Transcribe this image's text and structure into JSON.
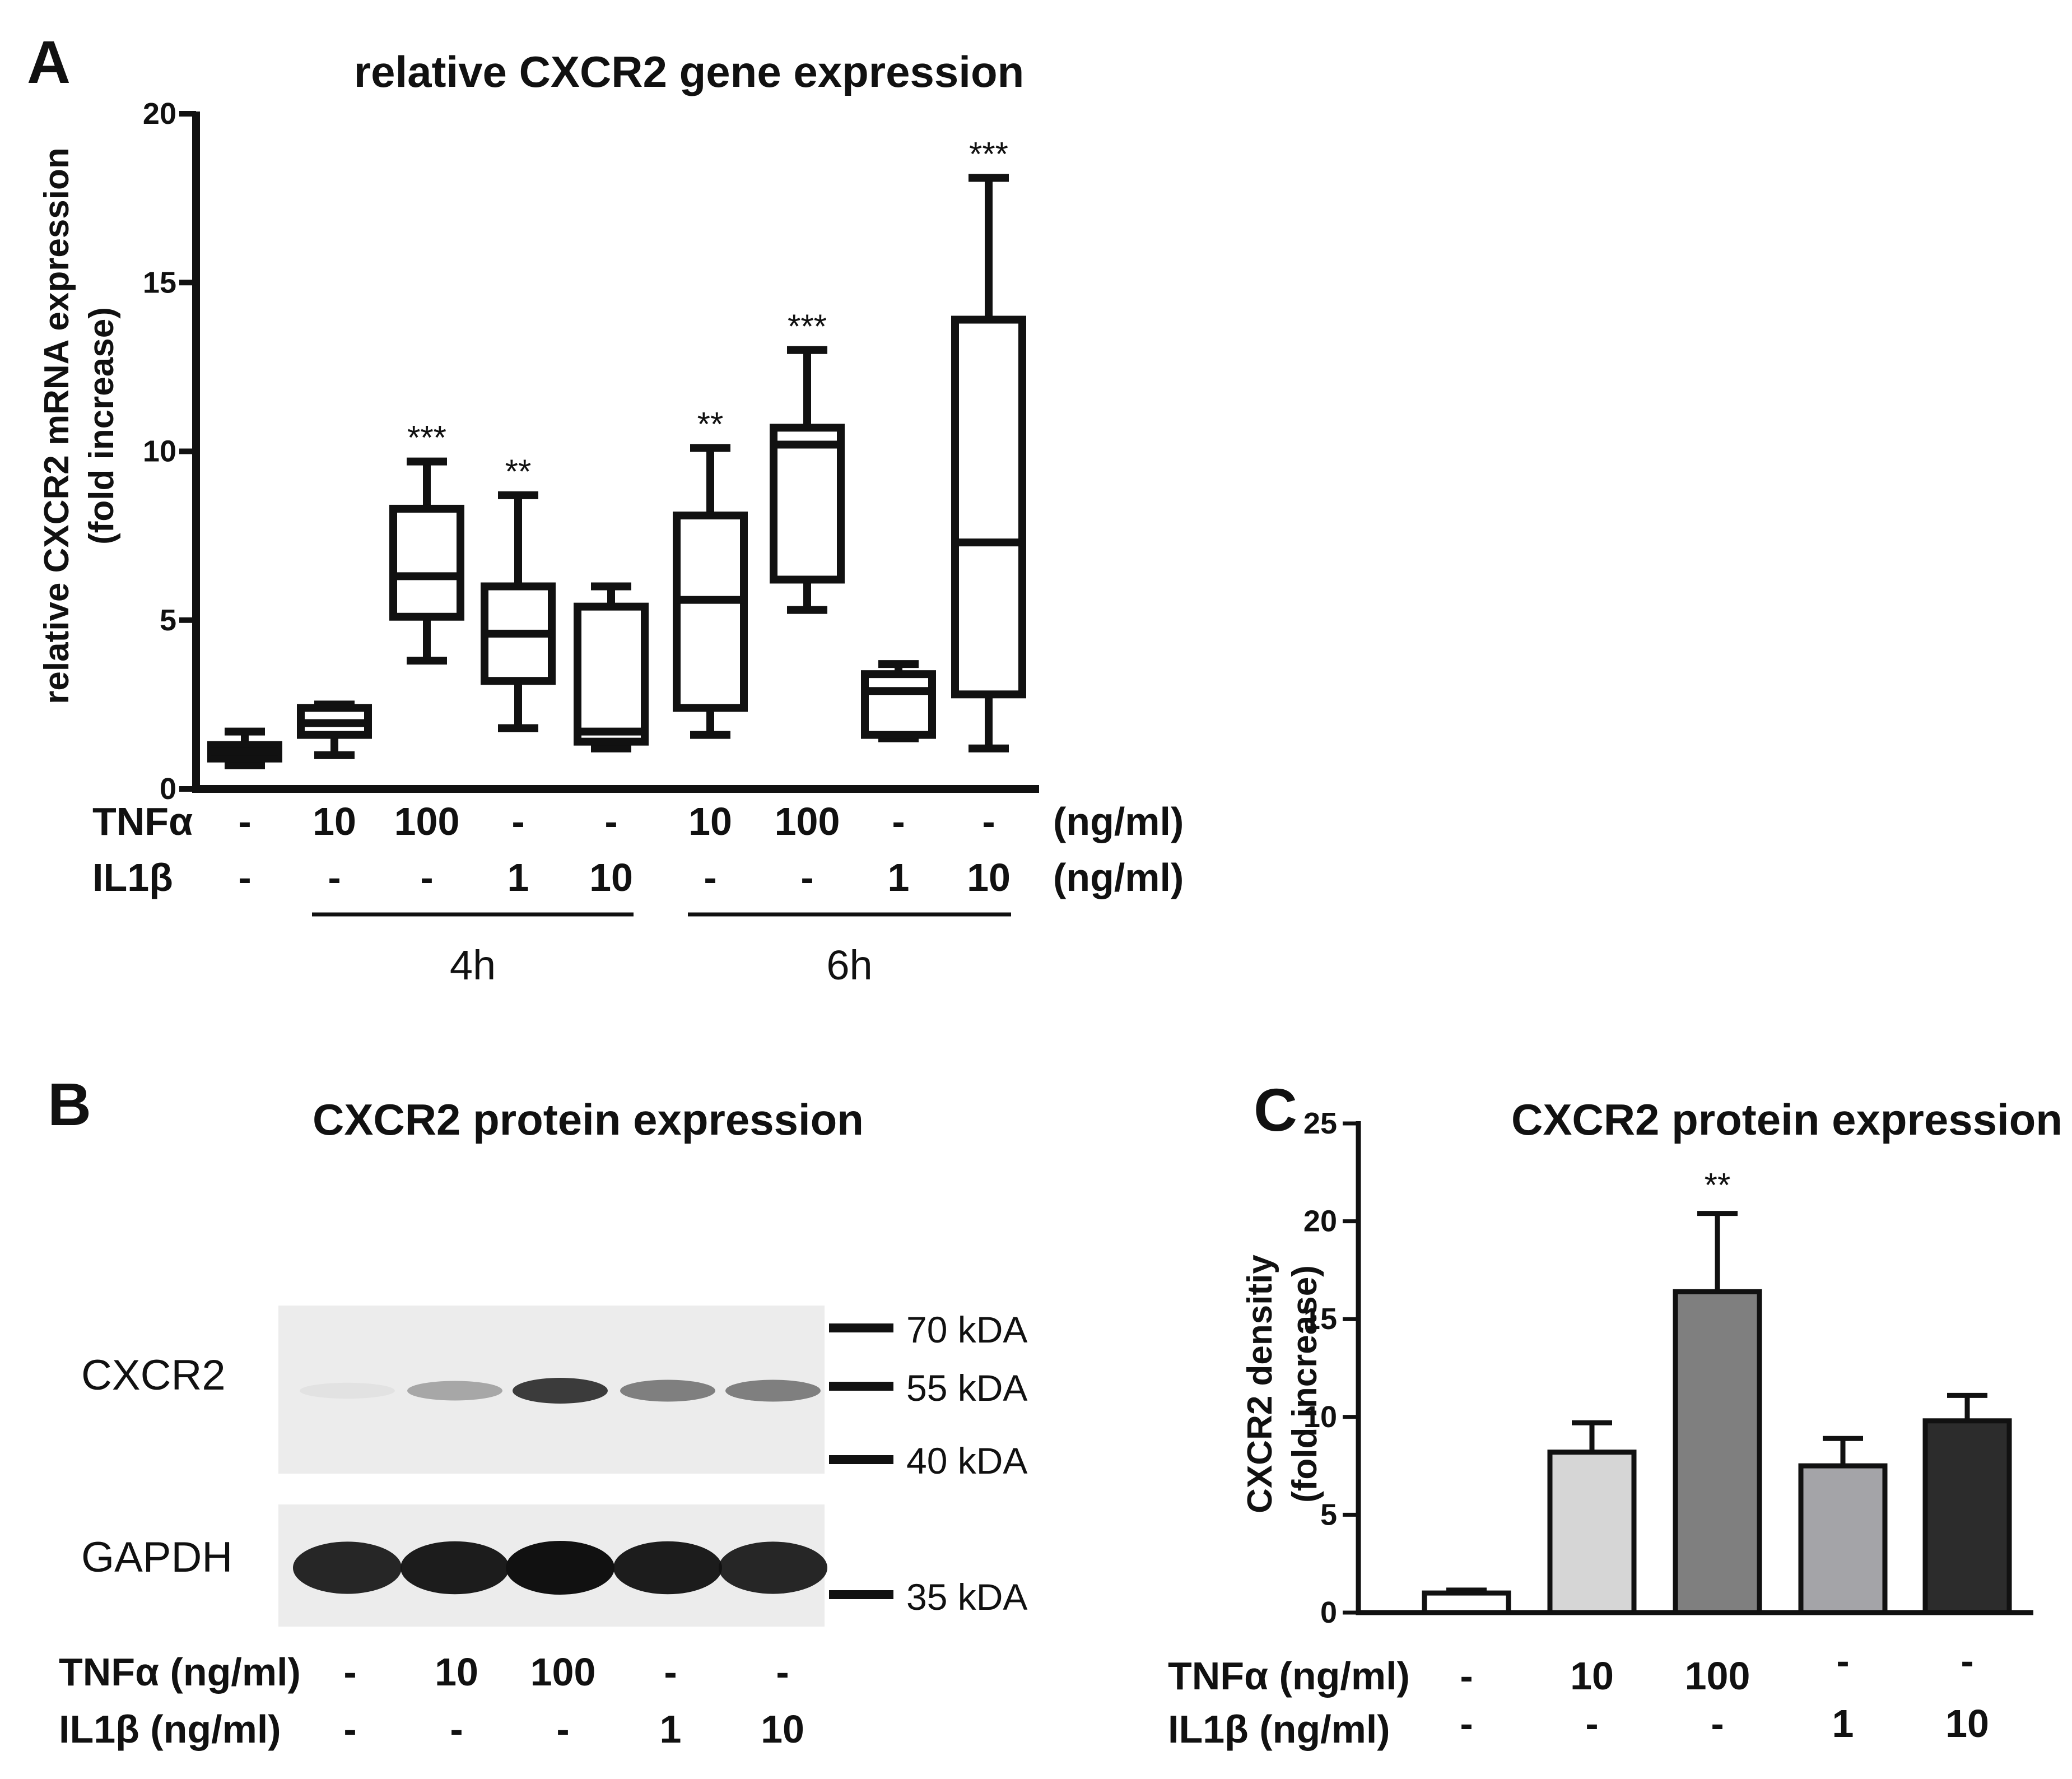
{
  "chart_data": [
    {
      "panel": "A",
      "type": "box",
      "title": "relative CXCR2 gene expression",
      "ylabel": "relative CXCR2 mRNA expression",
      "ylabel2": "(fold increase)",
      "ylim": [
        0,
        20
      ],
      "yticks": [
        "0",
        "5",
        "10",
        "15",
        "20"
      ],
      "row_labels": {
        "tnf": "TNFα",
        "il": "IL1β"
      },
      "unit_tnf": "(ng/ml)",
      "unit_il": "(ng/ml)",
      "groups": [
        {
          "tnf": "-",
          "il": "-",
          "min": 0.7,
          "q1": 0.9,
          "median": 1.1,
          "q3": 1.3,
          "max": 1.7,
          "sig": ""
        },
        {
          "tnf": "10",
          "il": "-",
          "min": 1.0,
          "q1": 1.6,
          "median": 1.95,
          "q3": 2.4,
          "max": 2.5,
          "sig": ""
        },
        {
          "tnf": "100",
          "il": "-",
          "min": 3.8,
          "q1": 5.1,
          "median": 6.3,
          "q3": 8.3,
          "max": 9.7,
          "sig": "***"
        },
        {
          "tnf": "-",
          "il": "1",
          "min": 1.8,
          "q1": 3.2,
          "median": 4.6,
          "q3": 6.0,
          "max": 8.7,
          "sig": "**"
        },
        {
          "tnf": "-",
          "il": "10",
          "min": 1.2,
          "q1": 1.4,
          "median": 1.7,
          "q3": 5.4,
          "max": 6.0,
          "sig": ""
        },
        {
          "tnf": "10",
          "il": "-",
          "min": 1.6,
          "q1": 2.4,
          "median": 5.6,
          "q3": 8.1,
          "max": 10.1,
          "sig": "**"
        },
        {
          "tnf": "100",
          "il": "-",
          "min": 5.3,
          "q1": 6.2,
          "median": 10.2,
          "q3": 10.7,
          "max": 13.0,
          "sig": "***"
        },
        {
          "tnf": "-",
          "il": "1",
          "min": 1.5,
          "q1": 1.6,
          "median": 2.9,
          "q3": 3.4,
          "max": 3.7,
          "sig": ""
        },
        {
          "tnf": "-",
          "il": "10",
          "min": 1.2,
          "q1": 2.8,
          "median": 7.3,
          "q3": 13.9,
          "max": 18.1,
          "sig": "***"
        }
      ],
      "time_groups": [
        {
          "label": "4h",
          "from": 1,
          "to": 4
        },
        {
          "label": "6h",
          "from": 5,
          "to": 8
        }
      ]
    },
    {
      "panel": "B",
      "type": "western_blot",
      "title": "CXCR2 protein expression",
      "bands": [
        {
          "label": "CXCR2",
          "intensities": [
            0.02,
            0.35,
            0.9,
            0.55,
            0.55
          ]
        },
        {
          "label": "GAPDH",
          "intensities": [
            0.9,
            0.95,
            1.0,
            0.95,
            0.9
          ]
        }
      ],
      "markers": [
        "70 kDA",
        "55 kDA",
        "40 kDA",
        "35 kDA"
      ],
      "row_labels": {
        "tnf": "TNFα (ng/ml)",
        "il": "IL1β (ng/ml)"
      },
      "tnf": [
        "-",
        "10",
        "100",
        "-",
        "-"
      ],
      "il": [
        "-",
        "-",
        "-",
        "1",
        "10"
      ]
    },
    {
      "panel": "C",
      "type": "bar",
      "title": "CXCR2 protein expression",
      "ylabel": "CXCR2 densitiy",
      "ylabel2": "(fold increase)",
      "ylim": [
        0,
        25
      ],
      "yticks": [
        "0",
        "5",
        "10",
        "15",
        "20",
        "25"
      ],
      "row_labels": {
        "tnf": "TNFα (ng/ml)",
        "il": "IL1β (ng/ml)"
      },
      "bars": [
        {
          "tnf": "-",
          "il": "-",
          "value": 1.0,
          "err": 0.15,
          "color": "#ffffff",
          "sig": ""
        },
        {
          "tnf": "10",
          "il": "-",
          "value": 8.2,
          "err": 1.5,
          "color": "#d6d6d6",
          "sig": ""
        },
        {
          "tnf": "100",
          "il": "-",
          "value": 16.4,
          "err": 4.0,
          "color": "#7f7f7f",
          "sig": "**"
        },
        {
          "tnf": "-",
          "il": "1",
          "value": 7.5,
          "err": 1.4,
          "color": "#a4a4a8",
          "sig": ""
        },
        {
          "tnf": "-",
          "il": "10",
          "value": 9.8,
          "err": 1.3,
          "color": "#2c2c2c",
          "sig": ""
        }
      ]
    }
  ],
  "panel_letters": [
    "A",
    "B",
    "C"
  ]
}
